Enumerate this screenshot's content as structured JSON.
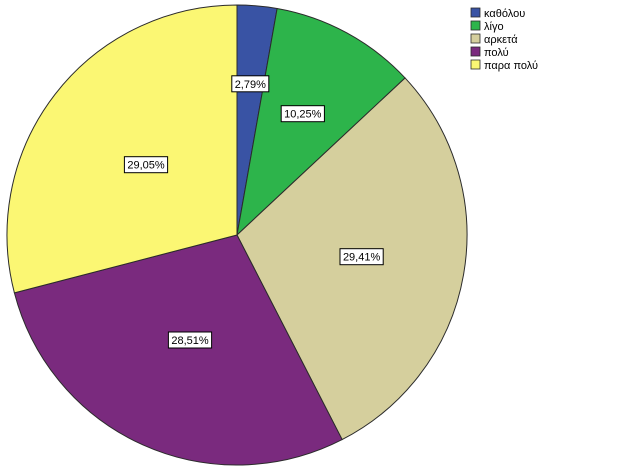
{
  "chart_data": {
    "type": "pie",
    "title": "",
    "categories": [
      "καθόλου",
      "λίγο",
      "αρκετά",
      "πολύ",
      "παρα πολύ"
    ],
    "values": [
      2.79,
      10.25,
      29.41,
      28.51,
      29.05
    ],
    "labels": [
      "2,79%",
      "10,25%",
      "29,41%",
      "28,51%",
      "29,05%"
    ],
    "colors": [
      "#3953a4",
      "#2db44b",
      "#d5cf9d",
      "#7a2a7e",
      "#fbf773"
    ],
    "start_angle": "12 o'clock",
    "direction": "clockwise",
    "legend_position": "top-right"
  }
}
